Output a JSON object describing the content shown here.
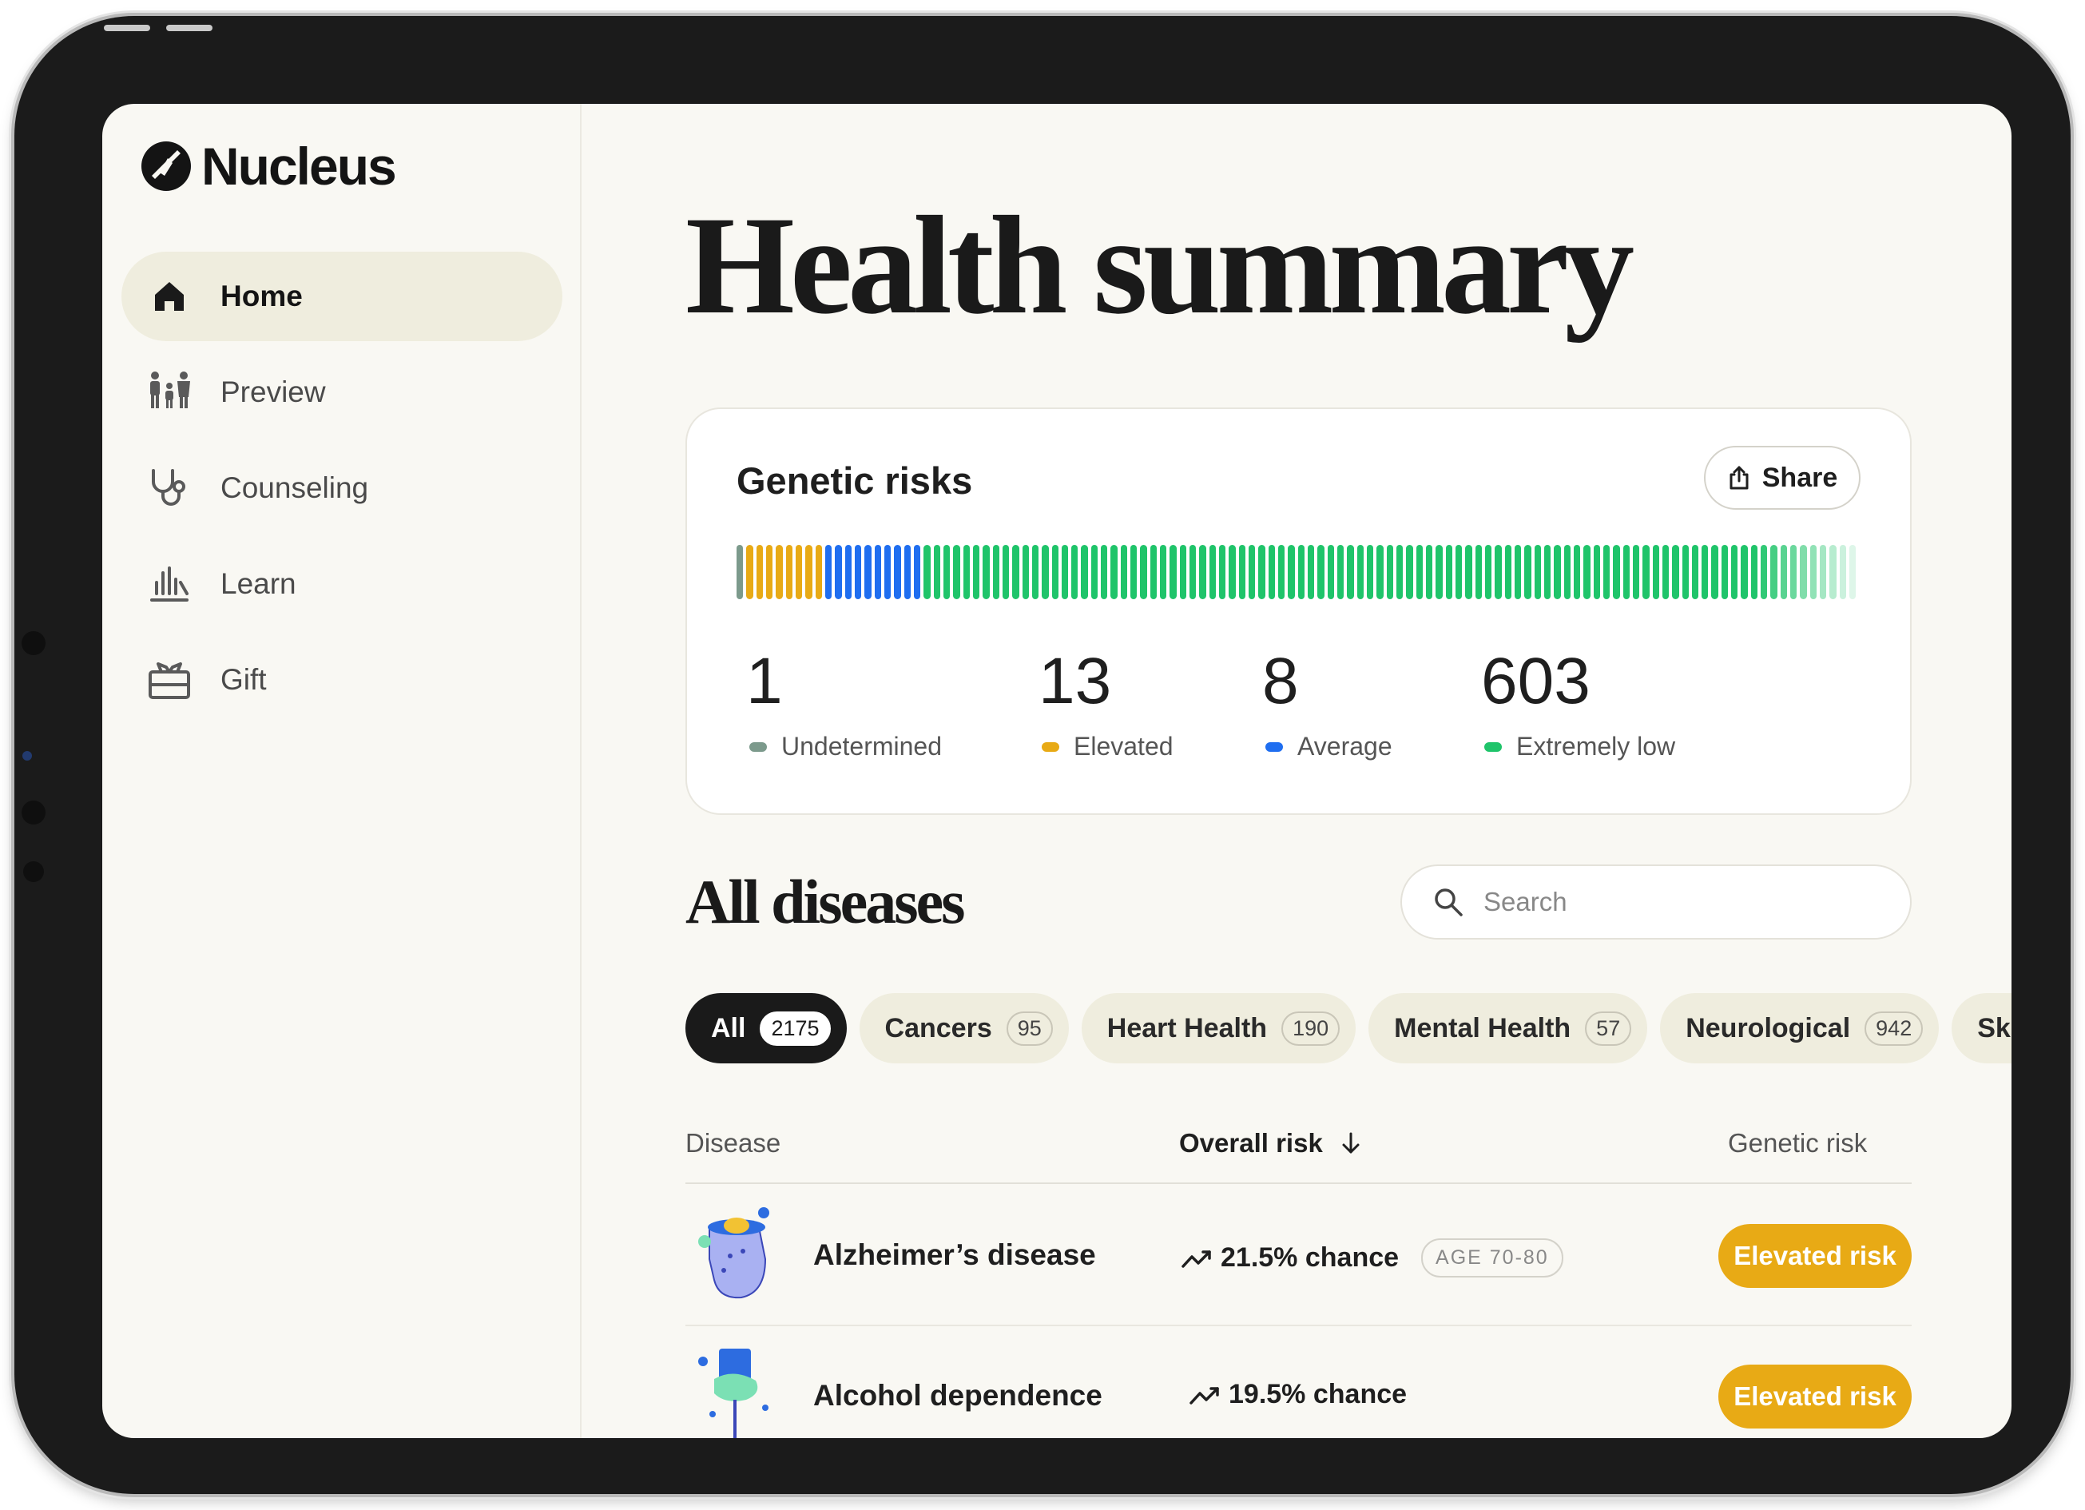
{
  "brand": {
    "name": "Nucleus"
  },
  "sidebar": {
    "items": [
      {
        "label": "Home",
        "icon": "home-icon",
        "active": true
      },
      {
        "label": "Preview",
        "icon": "family-icon"
      },
      {
        "label": "Counseling",
        "icon": "stethoscope-icon"
      },
      {
        "label": "Learn",
        "icon": "learn-chart-icon"
      },
      {
        "label": "Gift",
        "icon": "gift-icon"
      }
    ]
  },
  "page": {
    "title": "Health summary"
  },
  "genetic_risks": {
    "title": "Genetic risks",
    "share_label": "Share",
    "bar": {
      "undetermined": 1,
      "elevated": 13,
      "average": 8,
      "extremely_low": 603
    },
    "stats": [
      {
        "value": "1",
        "label": "Undetermined",
        "color": "#7c9a8c"
      },
      {
        "value": "13",
        "label": "Elevated",
        "color": "#e8aa15"
      },
      {
        "value": "8",
        "label": "Average",
        "color": "#1f6ef0"
      },
      {
        "value": "603",
        "label": "Extremely low",
        "color": "#1fc46a"
      }
    ]
  },
  "diseases": {
    "title": "All diseases",
    "search_placeholder": "Search",
    "chips": [
      {
        "label": "All",
        "count": "2175",
        "active": true
      },
      {
        "label": "Cancers",
        "count": "95"
      },
      {
        "label": "Heart Health",
        "count": "190"
      },
      {
        "label": "Mental Health",
        "count": "57"
      },
      {
        "label": "Neurological",
        "count": "942"
      },
      {
        "label": "Skin &",
        "count": ""
      }
    ],
    "columns": {
      "disease": "Disease",
      "overall_risk": "Overall risk",
      "genetic_risk": "Genetic risk"
    },
    "rows": [
      {
        "name": "Alzheimer’s disease",
        "chance": "21.5% chance",
        "age": "AGE 70-80",
        "genetic_risk": "Elevated risk"
      },
      {
        "name": "Alcohol dependence",
        "chance": "19.5% chance",
        "age": "",
        "genetic_risk": "Elevated risk"
      }
    ]
  },
  "colors": {
    "elevated": "#e8aa15",
    "average": "#1f6ef0",
    "extremely_low": "#1fc46a",
    "undetermined": "#7c9a8c",
    "background": "#f9f8f3"
  }
}
